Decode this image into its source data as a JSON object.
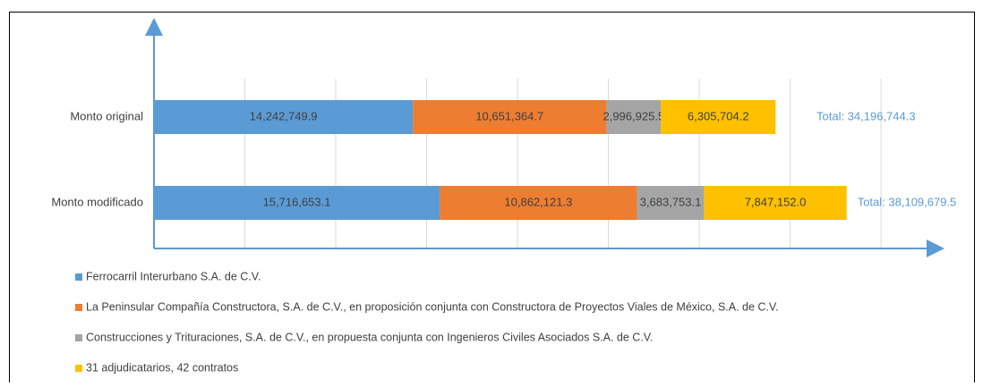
{
  "chart_data": {
    "type": "stacked-barh",
    "categories": [
      "Monto original",
      "Monto modificado"
    ],
    "series": [
      {
        "name": "Ferrocarril Interurbano S.A. de C.V.",
        "color": "#5b9bd5",
        "values": [
          14242749.9,
          15716653.1
        ],
        "value_labels": [
          "14,242,749.9",
          "15,716,653.1"
        ]
      },
      {
        "name": "La Peninsular Compañía Constructora, S.A. de C.V., en proposición conjunta con Constructora de Proyectos Viales de México, S.A. de C.V.",
        "color": "#ed7d31",
        "values": [
          10651364.7,
          10862121.3
        ],
        "value_labels": [
          "10,651,364.7",
          "10,862,121.3"
        ]
      },
      {
        "name": "Construcciones y Trituraciones, S.A. de C.V., en propuesta conjunta con Ingenieros Civiles Asociados S.A. de C.V.",
        "color": "#a5a5a5",
        "values": [
          2996925.5,
          3683753.1
        ],
        "value_labels": [
          "2,996,925.5",
          "3,683,753.1"
        ]
      },
      {
        "name": "31 adjudicatarios, 42 contratos",
        "color": "#ffc000",
        "values": [
          6305704.2,
          7847152.0
        ],
        "value_labels": [
          "6,305,704.2",
          "7,847,152.0"
        ]
      }
    ],
    "total_labels": [
      "Total: 34,196,744.3",
      "Total: 38,109,679.5"
    ],
    "totals_color": "#5b9bd5",
    "xlim": [
      0,
      43000000
    ],
    "xticks": [
      0,
      5000000,
      10000000,
      15000000,
      20000000,
      25000000,
      30000000,
      35000000,
      40000000
    ],
    "grid": true
  }
}
